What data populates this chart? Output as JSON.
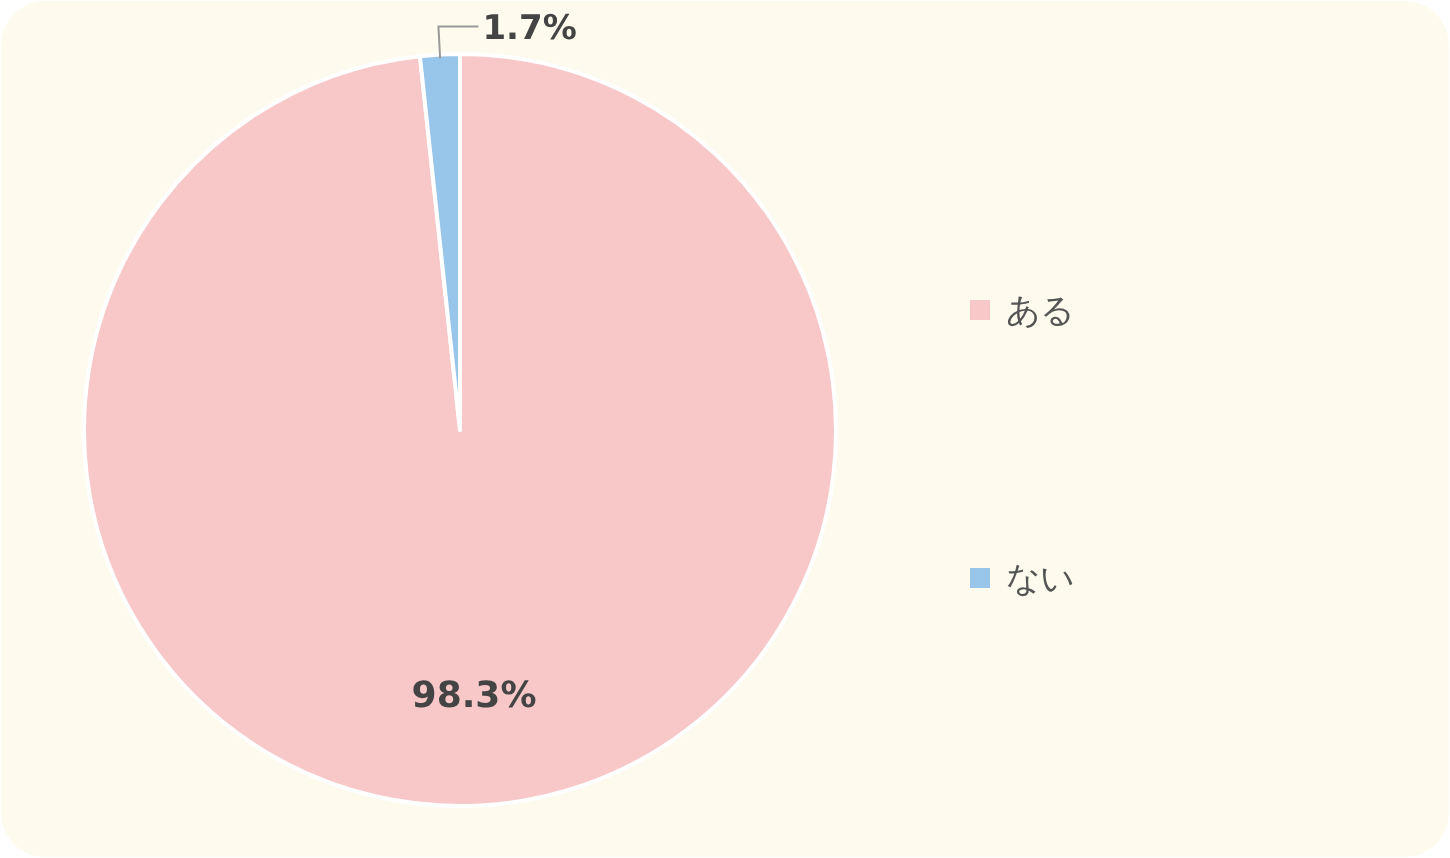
{
  "chart_data": {
    "type": "pie",
    "categories": [
      "ある",
      "ない"
    ],
    "values": [
      98.3,
      1.7
    ],
    "colors": [
      "#f8c8c9",
      "#97c6ea"
    ],
    "value_labels": [
      "98.3%",
      "1.7%"
    ],
    "legend": "right"
  }
}
